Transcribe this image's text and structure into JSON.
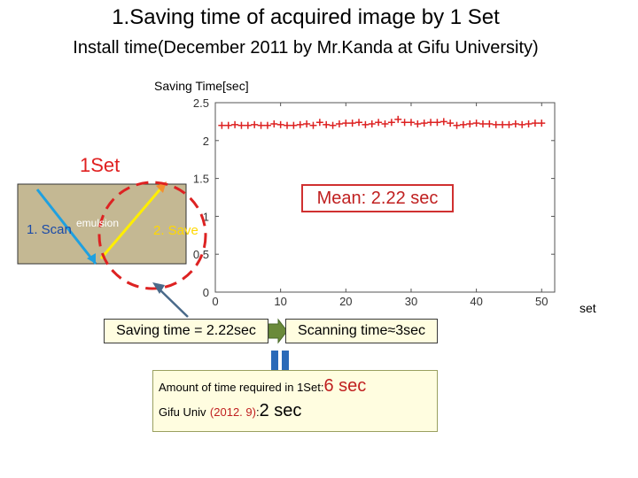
{
  "slide": {
    "title": "1.Saving time of acquired image by 1 Set",
    "subtitle": "Install time(December 2011 by Mr.Kanda at Gifu University)"
  },
  "diagram": {
    "one_set_label": "1Set",
    "scan_label": "1. Scan",
    "emulsion_label": "emulsion",
    "save_label": "2. Save",
    "emulsion_color": "#c4b893",
    "scan_color": "#1fa0e0",
    "save_color": "#ffee00"
  },
  "annotations": {
    "mean_label": "Mean: 2.22 sec",
    "saving_time_label": "Saving time = 2.22sec",
    "scanning_time_label": "Scanning time≈3sec",
    "arrow_color": "#4a6a8a"
  },
  "summary": {
    "line1_label": "Amount of time required in 1Set",
    "line1_value": "6 sec",
    "line2_label": "Gifu Univ",
    "line2_date": "(2012. 9)",
    "line2_value": "2 sec",
    "colon": ":"
  },
  "chart_data": {
    "type": "scatter",
    "ylabel": "Saving Time[sec]",
    "xlabel": "set",
    "xlim": [
      0,
      52
    ],
    "ylim": [
      0,
      2.5
    ],
    "xticks": [
      0,
      10,
      20,
      30,
      40,
      50
    ],
    "yticks": [
      0,
      0.5,
      1,
      1.5,
      2,
      2.5
    ],
    "xtick_labels": [
      "0",
      "10",
      "20",
      "30",
      "40",
      "50"
    ],
    "ytick_labels": [
      "0",
      "0.5",
      "1",
      "1.5",
      "2",
      "2.5"
    ],
    "grid": false,
    "marker": "+",
    "color": "#dd2222",
    "mean": 2.22,
    "series": [
      {
        "x": [
          1,
          2,
          3,
          4,
          5,
          6,
          7,
          8,
          9,
          10,
          11,
          12,
          13,
          14,
          15,
          16,
          17,
          18,
          19,
          20,
          21,
          22,
          23,
          24,
          25,
          26,
          27,
          28,
          29,
          30,
          31,
          32,
          33,
          34,
          35,
          36,
          37,
          38,
          39,
          40,
          41,
          42,
          43,
          44,
          45,
          46,
          47,
          48,
          49,
          50
        ],
        "y": [
          2.2,
          2.2,
          2.21,
          2.2,
          2.2,
          2.21,
          2.2,
          2.2,
          2.22,
          2.21,
          2.2,
          2.2,
          2.21,
          2.22,
          2.2,
          2.24,
          2.21,
          2.2,
          2.22,
          2.23,
          2.23,
          2.24,
          2.21,
          2.22,
          2.24,
          2.22,
          2.24,
          2.28,
          2.24,
          2.24,
          2.22,
          2.23,
          2.24,
          2.24,
          2.25,
          2.23,
          2.2,
          2.21,
          2.22,
          2.23,
          2.22,
          2.22,
          2.21,
          2.21,
          2.21,
          2.22,
          2.21,
          2.22,
          2.23,
          2.23
        ]
      }
    ]
  }
}
